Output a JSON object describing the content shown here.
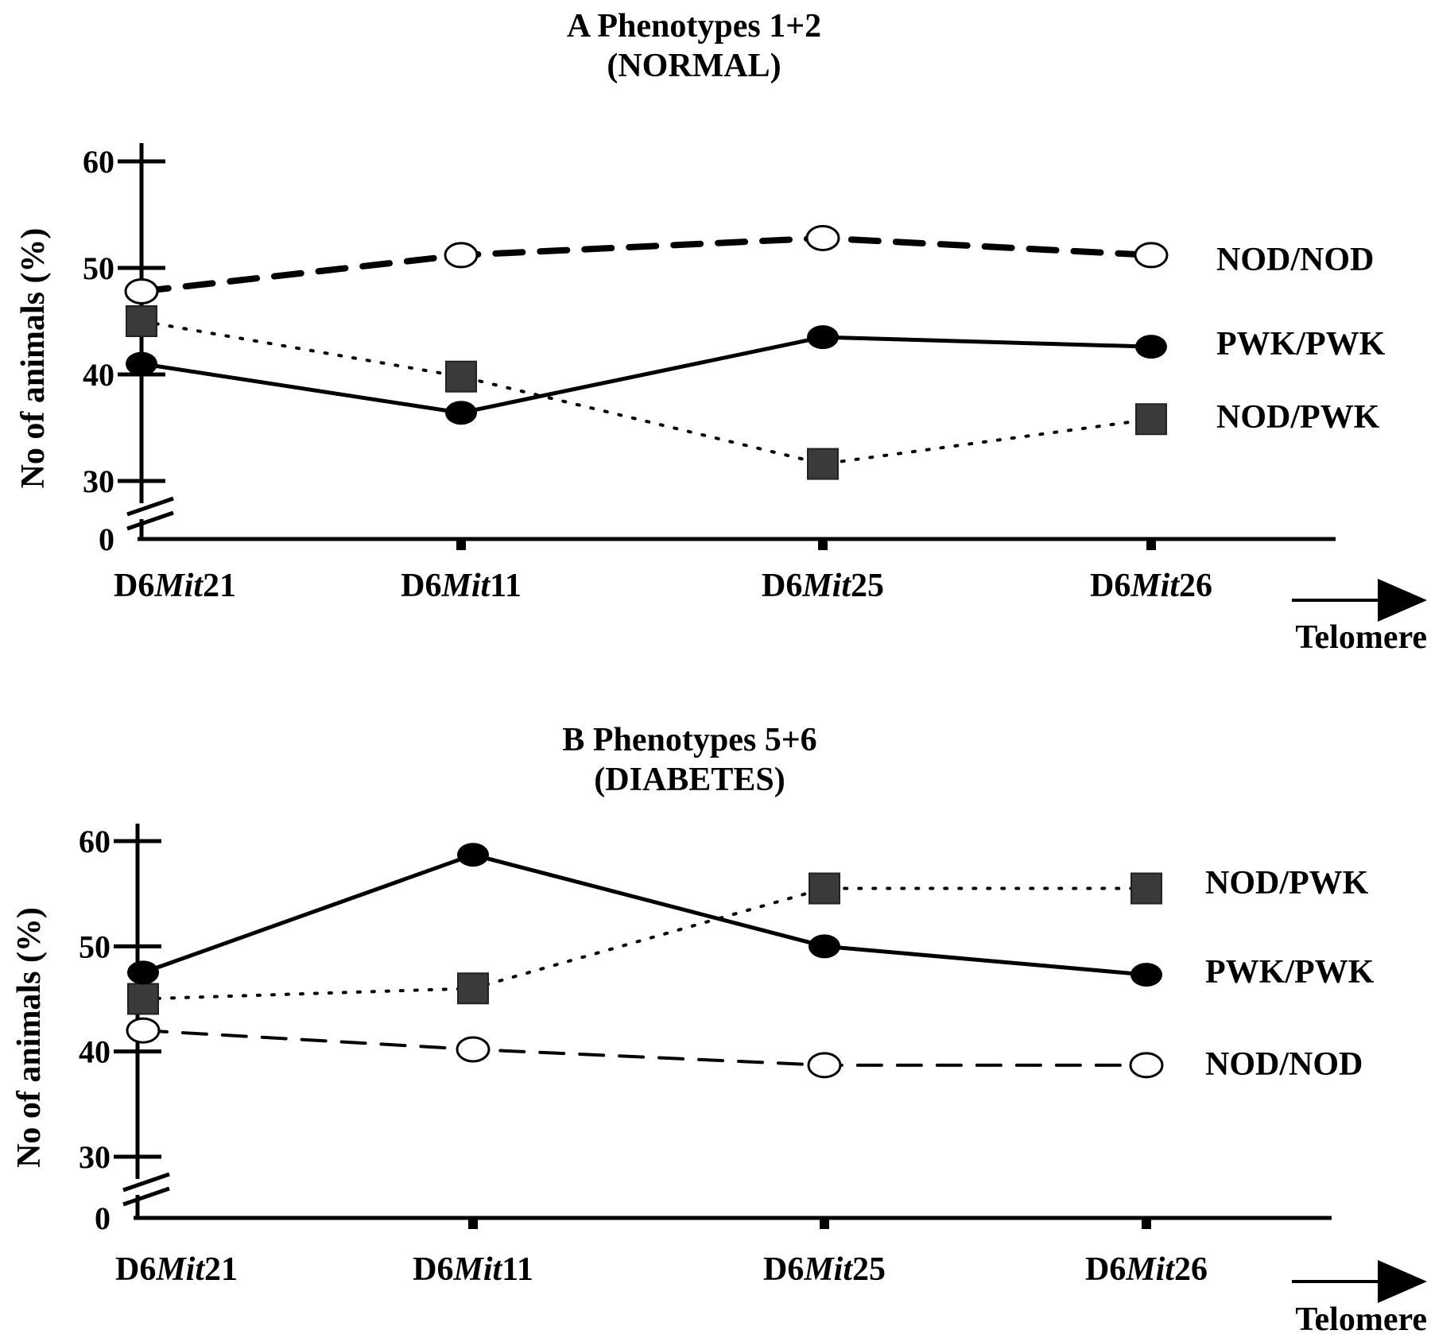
{
  "chart_data": [
    {
      "id": "A",
      "type": "line",
      "title": "A  Phenotypes 1+2",
      "subtitle": "(NORMAL)",
      "ylabel": "No  of animals (%)",
      "yticks": [
        "60",
        "50",
        "40",
        "30",
        "0"
      ],
      "ylim": [
        30,
        60
      ],
      "axis_break": true,
      "categories": [
        {
          "prefix": "D6",
          "italic": "Mit",
          "suffix": "21"
        },
        {
          "prefix": "D6",
          "italic": "Mit",
          "suffix": "11"
        },
        {
          "prefix": "D6",
          "italic": "Mit",
          "suffix": "25"
        },
        {
          "prefix": "D6",
          "italic": "Mit",
          "suffix": "26"
        }
      ],
      "arrow_label": "Telomere",
      "series": [
        {
          "name": "NOD/NOD",
          "values": [
            47.8,
            51.2,
            52.8,
            51.2
          ],
          "line": "dashed-heavy",
          "marker": "open-circle"
        },
        {
          "name": "PWK/PWK",
          "values": [
            41.0,
            36.4,
            43.5,
            42.6
          ],
          "line": "solid",
          "marker": "filled-circle"
        },
        {
          "name": "NOD/PWK",
          "values": [
            45.0,
            39.8,
            31.6,
            35.8
          ],
          "line": "dotted",
          "marker": "square"
        }
      ],
      "legend_order": [
        "NOD/NOD",
        "PWK/PWK",
        "NOD/PWK"
      ]
    },
    {
      "id": "B",
      "type": "line",
      "title": "B  Phenotypes 5+6",
      "subtitle": "(DIABETES)",
      "ylabel": "No  of animals (%)",
      "yticks": [
        "60",
        "50",
        "40",
        "30",
        "0"
      ],
      "ylim": [
        30,
        60
      ],
      "axis_break": true,
      "categories": [
        {
          "prefix": "D6",
          "italic": "Mit",
          "suffix": "21"
        },
        {
          "prefix": "D6",
          "italic": "Mit",
          "suffix": "11"
        },
        {
          "prefix": "D6",
          "italic": "Mit",
          "suffix": "25"
        },
        {
          "prefix": "D6",
          "italic": "Mit",
          "suffix": "26"
        }
      ],
      "arrow_label": "Telomere",
      "series": [
        {
          "name": "NOD/PWK",
          "values": [
            45.0,
            46.0,
            55.5,
            55.5
          ],
          "line": "dotted",
          "marker": "square"
        },
        {
          "name": "PWK/PWK",
          "values": [
            47.5,
            58.7,
            50.0,
            47.3
          ],
          "line": "solid",
          "marker": "filled-circle"
        },
        {
          "name": "NOD/NOD",
          "values": [
            42.0,
            40.2,
            38.7,
            38.7
          ],
          "line": "dashed",
          "marker": "open-circle"
        }
      ],
      "legend_order": [
        "NOD/PWK",
        "PWK/PWK",
        "NOD/NOD"
      ]
    }
  ]
}
